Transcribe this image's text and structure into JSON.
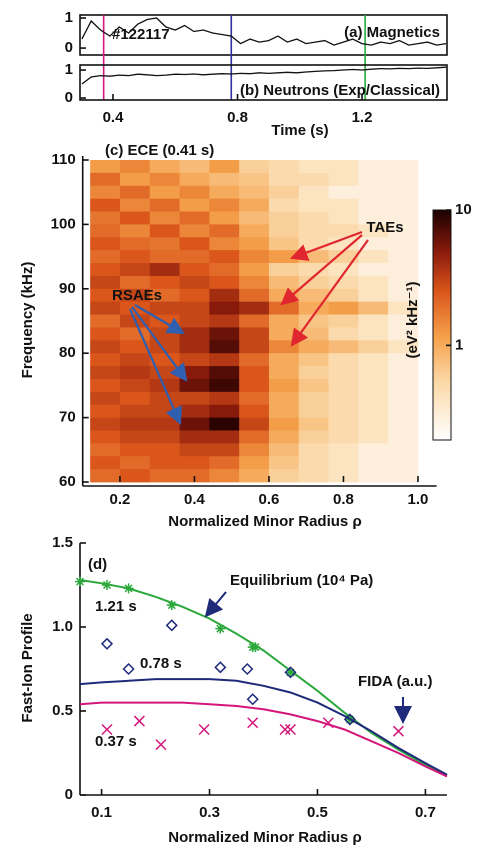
{
  "chart_data": [
    {
      "type": "line",
      "title": "(a) Magnetics",
      "annotation": "#122117",
      "box": true,
      "x": [
        0.3,
        0.33,
        0.36,
        0.39,
        0.42,
        0.45,
        0.48,
        0.51,
        0.54,
        0.57,
        0.6,
        0.63,
        0.66,
        0.69,
        0.72,
        0.75,
        0.78,
        0.81,
        0.84,
        0.87,
        0.9,
        0.93,
        0.96,
        0.99,
        1.02,
        1.05,
        1.08,
        1.11,
        1.14,
        1.17,
        1.2,
        1.23,
        1.26,
        1.29,
        1.32,
        1.35,
        1.38,
        1.41,
        1.44,
        1.47
      ],
      "series": [
        {
          "color": "#111111",
          "values": [
            0.3,
            0.9,
            0.6,
            0.4,
            0.7,
            0.5,
            0.8,
            0.95,
            1.0,
            0.7,
            0.6,
            0.75,
            0.55,
            0.6,
            0.5,
            0.45,
            0.4,
            0.15,
            0.3,
            0.2,
            0.25,
            0.4,
            0.2,
            0.3,
            0.15,
            0.2,
            0.25,
            0.1,
            0.2,
            0.3,
            0.15,
            0.1,
            0.2,
            0.15,
            0.25,
            0.1,
            0.15,
            0.2,
            0.1,
            0.15
          ]
        }
      ],
      "xlim": [
        0.294,
        1.473
      ],
      "ylim": [
        -0.23,
        1.1
      ],
      "yticks": [
        0,
        1
      ],
      "time_markers": [
        {
          "time": 0.37,
          "color": "#d4157a"
        },
        {
          "time": 0.78,
          "color": "#3030a0"
        },
        {
          "time": 1.21,
          "color": "#2ca83c"
        }
      ]
    },
    {
      "type": "line",
      "title": "(b) Neutrons (Exp/Classical)",
      "box": true,
      "xlabel": "Time (s)",
      "x": [
        0.3,
        0.33,
        0.36,
        0.39,
        0.42,
        0.45,
        0.48,
        0.51,
        0.54,
        0.57,
        0.6,
        0.63,
        0.66,
        0.69,
        0.72,
        0.75,
        0.78,
        0.81,
        0.84,
        0.87,
        0.9,
        0.93,
        0.96,
        0.99,
        1.02,
        1.05,
        1.08,
        1.11,
        1.14,
        1.17,
        1.2,
        1.23,
        1.26,
        1.29,
        1.32,
        1.35,
        1.38,
        1.41,
        1.44,
        1.47
      ],
      "series": [
        {
          "color": "#111111",
          "values": [
            0.5,
            0.75,
            0.8,
            0.78,
            0.82,
            0.8,
            0.85,
            0.83,
            0.8,
            0.82,
            0.85,
            0.84,
            0.86,
            0.83,
            0.85,
            0.87,
            0.86,
            0.88,
            0.87,
            0.9,
            0.88,
            0.9,
            0.92,
            0.9,
            0.93,
            0.95,
            0.97,
            0.98,
            1.0,
            1.02,
            1.0,
            1.03,
            1.05,
            1.04,
            1.06,
            1.05,
            1.07,
            1.06,
            1.08,
            1.1
          ]
        }
      ],
      "xlim": [
        0.294,
        1.473
      ],
      "ylim": [
        -0.07,
        1.18
      ],
      "yticks": [
        0,
        1
      ],
      "xticks": [
        0.4,
        0.8,
        1.2
      ]
    },
    {
      "type": "heatmap",
      "title": "(c) ECE (0.41 s)",
      "xlabel": "Normalized Minor Radius ρ",
      "ylabel": "Frequency (kHz)",
      "x": [
        0.16,
        0.24,
        0.32,
        0.4,
        0.48,
        0.56,
        0.64,
        0.72,
        0.8,
        0.88,
        0.96
      ],
      "y": [
        109,
        107,
        105,
        103,
        101,
        99,
        97,
        95,
        93,
        91,
        89,
        87,
        85,
        83,
        81,
        79,
        77,
        75,
        73,
        71,
        69,
        67,
        65,
        63,
        61
      ],
      "z": [
        [
          1.2,
          1.5,
          1.0,
          0.8,
          1.2,
          0.6,
          0.5,
          0.4,
          0.4,
          0.3,
          0.3
        ],
        [
          2,
          1.2,
          1.5,
          1,
          0.8,
          0.7,
          0.5,
          0.5,
          0.4,
          0.3,
          0.3
        ],
        [
          1.5,
          2,
          1.2,
          1.5,
          1,
          0.8,
          0.6,
          0.4,
          0.3,
          0.3,
          0.3
        ],
        [
          2.5,
          1.5,
          2,
          1.2,
          1.5,
          1,
          0.5,
          0.4,
          0.4,
          0.3,
          0.3
        ],
        [
          1.8,
          2.5,
          1.5,
          2,
          1.2,
          0.8,
          0.6,
          0.5,
          0.4,
          0.3,
          0.3
        ],
        [
          2,
          1.5,
          2.5,
          1.5,
          2,
          1,
          0.6,
          0.5,
          0.5,
          0.4,
          0.3
        ],
        [
          2.5,
          2,
          1.8,
          2.5,
          1.5,
          1.2,
          0.7,
          0.5,
          0.4,
          0.3,
          0.3
        ],
        [
          2,
          2.5,
          2,
          2,
          2.5,
          1.5,
          1.2,
          0.8,
          0.6,
          0.4,
          0.3
        ],
        [
          2.5,
          3,
          4,
          2.5,
          2,
          1.2,
          0.6,
          0.5,
          0.4,
          0.3,
          0.3
        ],
        [
          3,
          2,
          2.5,
          3,
          2.5,
          1.5,
          0.8,
          0.6,
          0.5,
          0.4,
          0.3
        ],
        [
          2.5,
          3,
          2,
          2.5,
          4,
          2,
          1,
          0.8,
          0.6,
          0.4,
          0.3
        ],
        [
          3,
          2.5,
          3,
          3,
          5,
          4,
          2,
          1,
          1.2,
          0.8,
          0.4
        ],
        [
          2,
          3,
          2.5,
          3,
          3.5,
          2,
          1,
          0.7,
          0.6,
          0.4,
          0.3
        ],
        [
          2.5,
          2,
          3,
          4,
          6,
          3,
          1,
          0.8,
          0.5,
          0.4,
          0.3
        ],
        [
          3,
          2.5,
          3,
          4,
          7,
          3,
          1.5,
          1,
          0.8,
          0.6,
          0.4
        ],
        [
          2.5,
          3,
          2.5,
          3,
          3.5,
          2,
          1,
          0.7,
          0.5,
          0.4,
          0.3
        ],
        [
          3,
          3.5,
          3,
          5,
          7,
          2.5,
          1,
          0.6,
          0.5,
          0.4,
          0.3
        ],
        [
          2.5,
          3,
          3.5,
          6,
          8,
          2.5,
          1.2,
          0.7,
          0.5,
          0.4,
          0.3
        ],
        [
          3,
          2.5,
          3,
          3,
          3.5,
          2,
          1,
          0.6,
          0.5,
          0.4,
          0.3
        ],
        [
          2.5,
          3,
          3,
          4,
          5,
          2.5,
          1,
          0.6,
          0.5,
          0.4,
          0.3
        ],
        [
          3,
          3.5,
          3.5,
          6,
          9,
          3,
          1.2,
          0.7,
          0.5,
          0.4,
          0.3
        ],
        [
          2.5,
          3,
          3,
          4,
          4,
          2,
          1,
          0.6,
          0.5,
          0.4,
          0.3
        ],
        [
          2,
          2.5,
          2.5,
          3,
          3,
          1.5,
          0.8,
          0.5,
          0.4,
          0.3,
          0.3
        ],
        [
          2.5,
          2,
          2.5,
          2.5,
          2,
          1.2,
          0.7,
          0.5,
          0.4,
          0.3,
          0.3
        ],
        [
          2,
          2.5,
          2,
          2,
          1.5,
          1,
          0.6,
          0.5,
          0.4,
          0.3,
          0.3
        ]
      ],
      "xlim": [
        0.1,
        1.05
      ],
      "ylim": [
        60,
        110
      ],
      "xticks": [
        0.2,
        0.4,
        0.6,
        0.8,
        {
          "value": 1,
          "label": "1.0"
        }
      ],
      "yticks": [
        60,
        70,
        80,
        90,
        100,
        110
      ],
      "colorbar": {
        "label": "(eV² kHz⁻¹)",
        "zlim": [
          0.2,
          10
        ],
        "ticks": [
          1,
          10
        ],
        "log": true
      },
      "annotations": [
        {
          "text": "TAEs",
          "color": "#e0262e"
        },
        {
          "text": "RSAEs",
          "color": "#2e5fb0"
        }
      ]
    },
    {
      "type": "line",
      "title": "(d)",
      "xlabel": "Normalized Minor Radius ρ",
      "ylabel": "Fast-Ion Profile",
      "box": false,
      "x": [
        0.06,
        0.1,
        0.15,
        0.2,
        0.25,
        0.3,
        0.35,
        0.4,
        0.45,
        0.5,
        0.55,
        0.6,
        0.65,
        0.7,
        0.74
      ],
      "series": [
        {
          "name": "1.21 s",
          "color": "#2ca83c",
          "values": [
            1.28,
            1.26,
            1.23,
            1.18,
            1.12,
            1.05,
            0.96,
            0.86,
            0.74,
            0.62,
            0.49,
            0.37,
            0.27,
            0.18,
            0.12
          ],
          "marker": "asterisk",
          "points": {
            "x": [
              0.06,
              0.11,
              0.15,
              0.23,
              0.32,
              0.38,
              0.385,
              0.45,
              0.56
            ],
            "y": [
              1.27,
              1.25,
              1.23,
              1.13,
              0.99,
              0.88,
              0.88,
              0.73,
              0.45
            ]
          }
        },
        {
          "name": "0.78 s",
          "color": "#1f2a7a",
          "values": [
            0.66,
            0.67,
            0.68,
            0.69,
            0.69,
            0.69,
            0.68,
            0.65,
            0.61,
            0.55,
            0.47,
            0.38,
            0.28,
            0.19,
            0.12
          ],
          "marker": "diamond",
          "points": {
            "x": [
              0.11,
              0.15,
              0.23,
              0.32,
              0.37,
              0.38,
              0.45,
              0.56
            ],
            "y": [
              0.9,
              0.75,
              1.01,
              0.76,
              0.75,
              0.57,
              0.73,
              0.45
            ]
          }
        },
        {
          "name": "0.37 s",
          "color": "#d4157a",
          "values": [
            0.54,
            0.55,
            0.55,
            0.55,
            0.55,
            0.54,
            0.53,
            0.51,
            0.48,
            0.44,
            0.39,
            0.32,
            0.25,
            0.17,
            0.11
          ],
          "marker": "x",
          "points": {
            "x": [
              0.11,
              0.17,
              0.21,
              0.29,
              0.38,
              0.44,
              0.45,
              0.52,
              0.65
            ],
            "y": [
              0.39,
              0.44,
              0.3,
              0.39,
              0.43,
              0.39,
              0.39,
              0.43,
              0.38
            ]
          }
        }
      ],
      "xlim": [
        0.06,
        0.74
      ],
      "ylim": [
        0,
        1.5
      ],
      "xticks": [
        0.1,
        0.3,
        0.5,
        0.7
      ],
      "yticks": [
        0,
        {
          "value": 0.5,
          "label": "0.5"
        },
        {
          "value": 1,
          "label": "1.0"
        },
        {
          "value": 1.5,
          "label": "1.5"
        }
      ],
      "annotations": [
        {
          "text": "Equilibrium (10⁴ Pa)"
        },
        {
          "text": "FIDA (a.u.)"
        }
      ]
    }
  ]
}
